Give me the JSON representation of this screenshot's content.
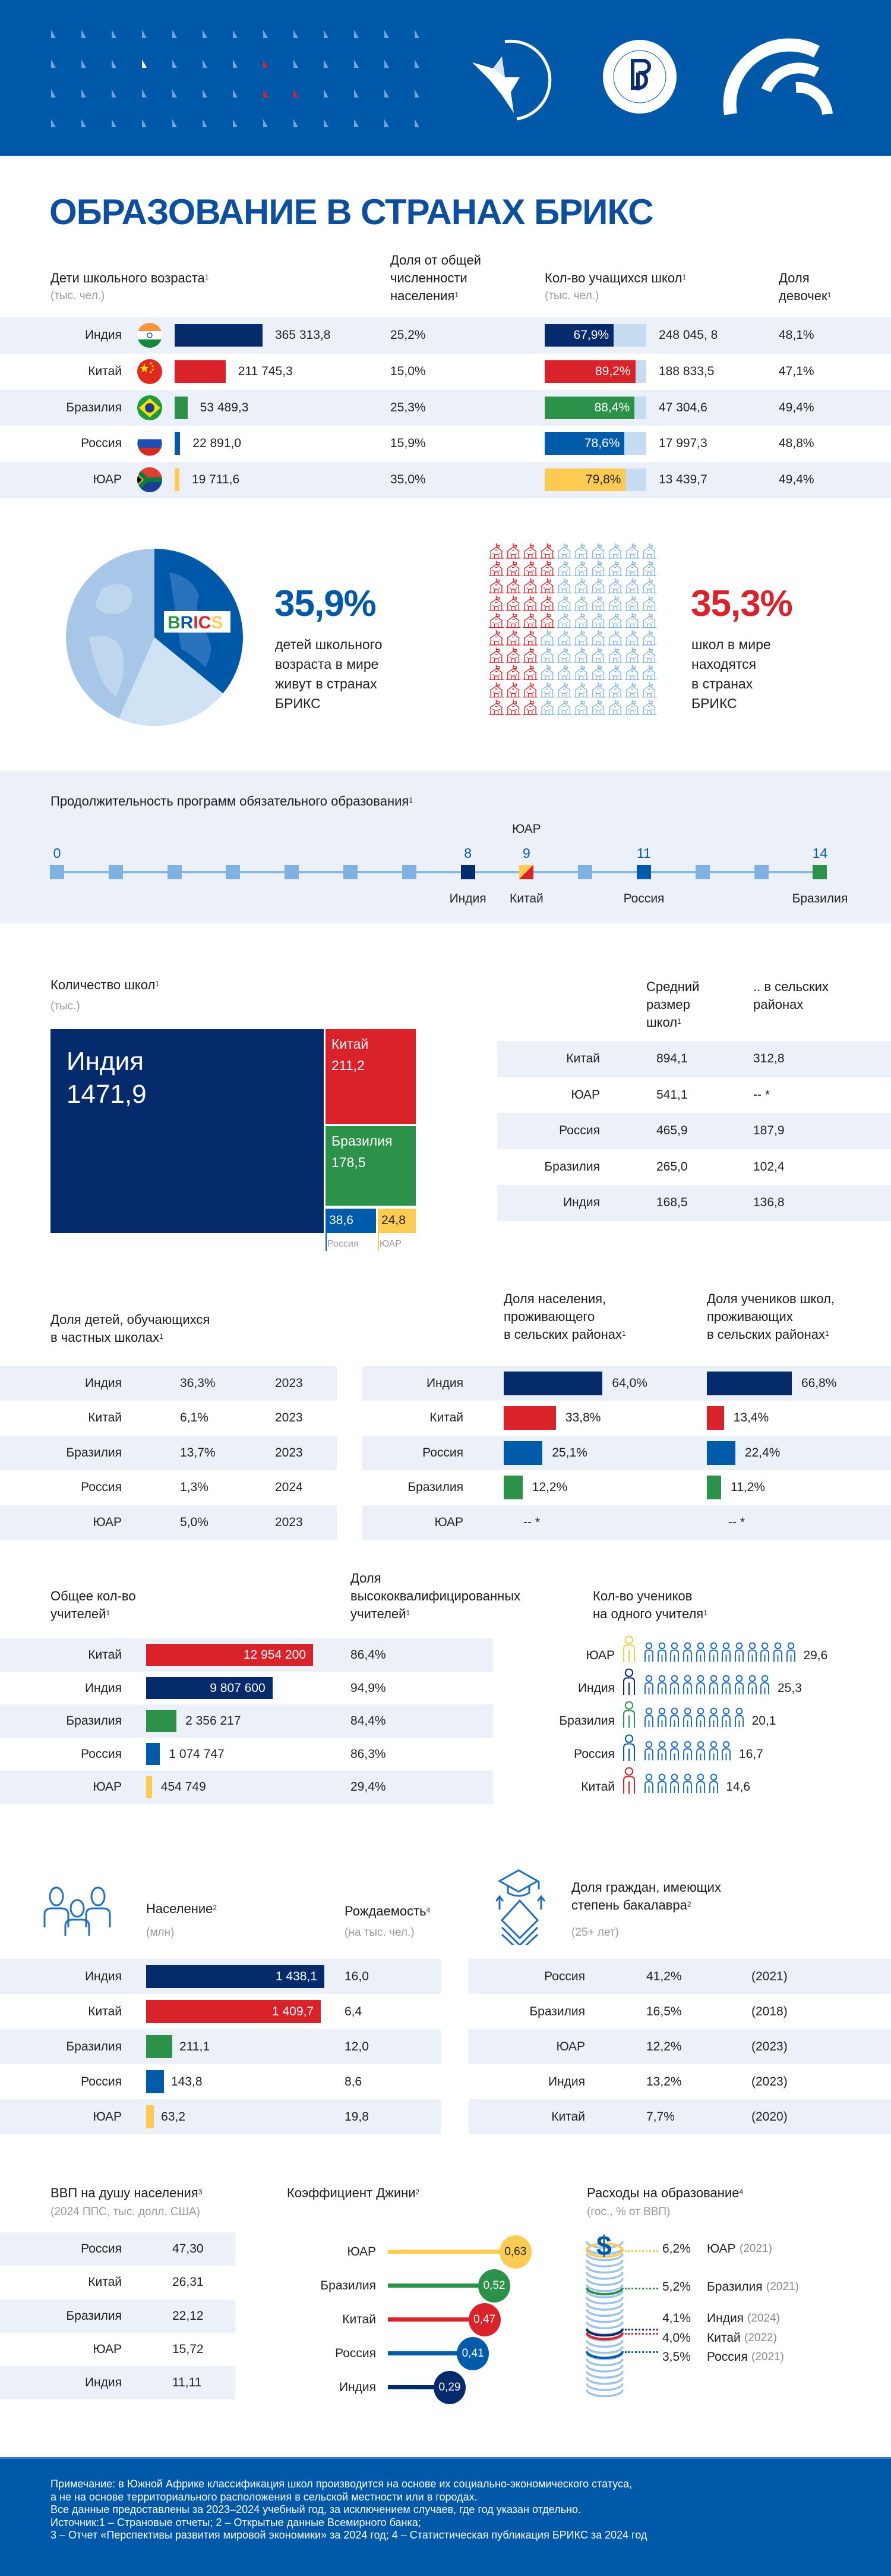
{
  "header": {
    "logos": [
      "ЭКСПЕРТНЫЙ СОВЕТ БРИКС — РОССИЯ",
      "ВЫСШАЯ ШКОЛА ЭКОНОМИКИ",
      "ИНСТИТУТ ОБРАЗОВАНИЯ НИУ ВШЭ"
    ]
  },
  "title": "ОБРАЗОВАНИЕ В СТРАНАХ БРИКС",
  "colors": {
    "india": "#062b6c",
    "china": "#d9222a",
    "brazil": "#2c9149",
    "russia": "#005baa",
    "south_africa": "#fdcb52",
    "header_bg": "#0058a8",
    "row_band": "#ecf1f9",
    "light_bar": "#c6dcf1",
    "title": "#0b4f9e",
    "accent_red": "#d9222a"
  },
  "children": {
    "header": {
      "children": [
        "Дети школьного возраста"
      ],
      "children_sup": "1",
      "children_unit": "(тыс. чел.)",
      "share": [
        "Доля от общей",
        "численности",
        "населения"
      ],
      "share_sup": "1",
      "students": [
        "Кол-во учащихся школ"
      ],
      "students_sup": "1",
      "students_unit": "(тыс. чел.)",
      "girls": [
        "Доля",
        "девочек"
      ],
      "girls_sup": "1"
    },
    "rows": [
      {
        "country": "Индия",
        "key": "india",
        "children": "365 313,8",
        "children_value": 365313.8,
        "share": "25,2%",
        "students_pct": "67,9%",
        "students_pct_value": 67.9,
        "students": "248 045, 8",
        "girls": "48,1%"
      },
      {
        "country": "Китай",
        "key": "china",
        "children": "211 745,3",
        "children_value": 211745.3,
        "share": "15,0%",
        "students_pct": "89,2%",
        "students_pct_value": 89.2,
        "students": "188 833,5",
        "girls": "47,1%"
      },
      {
        "country": "Бразилия",
        "key": "brazil",
        "children": "53 489,3",
        "children_value": 53489.3,
        "share": "25,3%",
        "students_pct": "88,4%",
        "students_pct_value": 88.4,
        "students": "47 304,6",
        "girls": "49,4%"
      },
      {
        "country": "Россия",
        "key": "russia",
        "children": "22 891,0",
        "children_value": 22891.0,
        "share": "15,9%",
        "students_pct": "78,6%",
        "students_pct_value": 78.6,
        "students": "17 997,3",
        "girls": "48,8%"
      },
      {
        "country": "ЮАР",
        "key": "south_africa",
        "children": "19 711,6",
        "children_value": 19711.6,
        "share": "35,0%",
        "students_pct": "79,8%",
        "students_pct_value": 79.8,
        "students": "13 439,7",
        "girls": "49,4%"
      }
    ]
  },
  "stats": {
    "globe_label": "BRICS",
    "children_pct": "35,9%",
    "children_value": 35.9,
    "children_text": [
      "детей школьного",
      "возраста в мире",
      "живут в странах",
      "БРИКС"
    ],
    "schools_pct": "35,3%",
    "schools_value": 35.3,
    "schools_text": [
      "школ в мире",
      "находятся",
      "в странах",
      "БРИКС"
    ]
  },
  "timeline": {
    "title": [
      "Продолжительность программ обязательного образования"
    ],
    "sup": "1",
    "ticks": [
      {
        "label": "0",
        "value": 0
      },
      {
        "label": "8",
        "value": 8
      },
      {
        "label": "9",
        "value": 9
      },
      {
        "label": "11",
        "value": 11
      },
      {
        "label": "14",
        "value": 14
      }
    ],
    "points": [
      {
        "country": "Индия",
        "key": "india",
        "years": 8,
        "side": "below"
      },
      {
        "country": "Китай",
        "key": "china",
        "years": 9,
        "side": "below"
      },
      {
        "country": "ЮАР",
        "key": "south_africa",
        "years": 9,
        "side": "above"
      },
      {
        "country": "Россия",
        "key": "russia",
        "years": 11,
        "side": "below"
      },
      {
        "country": "Бразилия",
        "key": "brazil",
        "years": 14,
        "side": "below"
      }
    ]
  },
  "schools": {
    "title": [
      "Количество школ"
    ],
    "sup": "1",
    "unit": "(тыс.)",
    "treemap": [
      {
        "country": "Индия",
        "key": "india",
        "value": "1471,9"
      },
      {
        "country": "Китай",
        "key": "china",
        "value": "211,2"
      },
      {
        "country": "Бразилия",
        "key": "brazil",
        "value": "178,5"
      },
      {
        "country": "Россия",
        "key": "russia",
        "value": "38,6"
      },
      {
        "country": "ЮАР",
        "key": "south_africa",
        "value": "24,8"
      }
    ],
    "avg_header": [
      "Средний",
      "размер",
      "школ"
    ],
    "avg_sup": "1",
    "rural_header": [
      ".. в сельских",
      "районах"
    ],
    "rows": [
      {
        "country": "Китай",
        "avg": "894,1",
        "rural": "312,8"
      },
      {
        "country": "ЮАР",
        "avg": "541,1",
        "rural": "-- *"
      },
      {
        "country": "Россия",
        "avg": "465,9",
        "rural": "187,9"
      },
      {
        "country": "Бразилия",
        "avg": "265,0",
        "rural": "102,4"
      },
      {
        "country": "Индия",
        "avg": "168,5",
        "rural": "136,8"
      }
    ]
  },
  "private": {
    "title": [
      "Доля детей, обучающихся",
      "в частных школах"
    ],
    "sup": "1",
    "rows": [
      {
        "country": "Индия",
        "pct": "36,3%",
        "year": "2023"
      },
      {
        "country": "Китай",
        "pct": "6,1%",
        "year": "2023"
      },
      {
        "country": "Бразилия",
        "pct": "13,7%",
        "year": "2023"
      },
      {
        "country": "Россия",
        "pct": "1,3%",
        "year": "2024"
      },
      {
        "country": "ЮАР",
        "pct": "5,0%",
        "year": "2023"
      }
    ]
  },
  "rural": {
    "pop_header": [
      "Доля населения,",
      "проживающего",
      "в сельских районах"
    ],
    "pop_sup": "1",
    "students_header": [
      "Доля учеников школ,",
      "проживающих",
      "в сельских районах"
    ],
    "students_sup": "1",
    "rows": [
      {
        "country": "Индия",
        "key": "india",
        "pop": "64,0%",
        "pop_value": 64.0,
        "students": "66,8%",
        "students_value": 66.8
      },
      {
        "country": "Китай",
        "key": "china",
        "pop": "33,8%",
        "pop_value": 33.8,
        "students": "13,4%",
        "students_value": 13.4
      },
      {
        "country": "Россия",
        "key": "russia",
        "pop": "25,1%",
        "pop_value": 25.1,
        "students": "22,4%",
        "students_value": 22.4
      },
      {
        "country": "Бразилия",
        "key": "brazil",
        "pop": "12,2%",
        "pop_value": 12.2,
        "students": "11,2%",
        "students_value": 11.2
      },
      {
        "country": "ЮАР",
        "key": "south_africa",
        "pop": "-- *",
        "pop_value": null,
        "students": "-- *",
        "students_value": null
      }
    ]
  },
  "teachers": {
    "total_header": [
      "Общее кол-во",
      "учителей"
    ],
    "total_sup": "1",
    "qual_header": [
      "Доля",
      "высококвалифицированных",
      "учителей"
    ],
    "qual_sup": "1",
    "ratio_header": [
      "Кол-во учеников",
      "на одного учителя"
    ],
    "ratio_sup": "1",
    "rows": [
      {
        "country": "Китай",
        "key": "china",
        "total": "12 954 200",
        "total_value": 12954200,
        "qual": "86,4%"
      },
      {
        "country": "Индия",
        "key": "india",
        "total": "9 807 600",
        "total_value": 9807600,
        "qual": "94,9%"
      },
      {
        "country": "Бразилия",
        "key": "brazil",
        "total": "2 356 217",
        "total_value": 2356217,
        "qual": "84,4%"
      },
      {
        "country": "Россия",
        "key": "russia",
        "total": "1 074 747",
        "total_value": 1074747,
        "qual": "86,3%"
      },
      {
        "country": "ЮАР",
        "key": "south_africa",
        "total": "454 749",
        "total_value": 454749,
        "qual": "29,4%"
      }
    ],
    "ratio_rows": [
      {
        "country": "ЮАР",
        "key": "south_africa",
        "ratio": "29,6",
        "ratio_value": 29.6
      },
      {
        "country": "Индия",
        "key": "india",
        "ratio": "25,3",
        "ratio_value": 25.3
      },
      {
        "country": "Бразилия",
        "key": "brazil",
        "ratio": "20,1",
        "ratio_value": 20.1
      },
      {
        "country": "Россия",
        "key": "russia",
        "ratio": "16,7",
        "ratio_value": 16.7
      },
      {
        "country": "Китай",
        "key": "china",
        "ratio": "14,6",
        "ratio_value": 14.6
      }
    ]
  },
  "population": {
    "pop_title": [
      "Население"
    ],
    "pop_sup": "2",
    "pop_unit": "(млн)",
    "birth_title": [
      "Рождаемость"
    ],
    "birth_sup": "4",
    "birth_unit": "(на тыс. чел.)",
    "rows": [
      {
        "country": "Индия",
        "key": "india",
        "pop": "1 438,1",
        "pop_value": 1438.1,
        "birth": "16,0"
      },
      {
        "country": "Китай",
        "key": "china",
        "pop": "1 409,7",
        "pop_value": 1409.7,
        "birth": "6,4"
      },
      {
        "country": "Бразилия",
        "key": "brazil",
        "pop": "211,1",
        "pop_value": 211.1,
        "birth": "12,0"
      },
      {
        "country": "Россия",
        "key": "russia",
        "pop": "143,8",
        "pop_value": 143.8,
        "birth": "8,6"
      },
      {
        "country": "ЮАР",
        "key": "south_africa",
        "pop": "63,2",
        "pop_value": 63.2,
        "birth": "19,8"
      }
    ]
  },
  "bachelor": {
    "title": [
      "Доля граждан, имеющих",
      "степень бакалавра"
    ],
    "sup": "2",
    "unit": "(25+ лет)",
    "rows": [
      {
        "country": "Россия",
        "pct": "41,2%",
        "year": "(2021)"
      },
      {
        "country": "Бразилия",
        "pct": "16,5%",
        "year": "(2018)"
      },
      {
        "country": "ЮАР",
        "pct": "12,2%",
        "year": "(2023)"
      },
      {
        "country": "Индия",
        "pct": "13,2%",
        "year": "(2023)"
      },
      {
        "country": "Китай",
        "pct": "7,7%",
        "year": "(2020)"
      }
    ]
  },
  "gdp": {
    "title": [
      "ВВП на душу населения"
    ],
    "sup": "3",
    "unit": "(2024 ППС, тыс. долл. США)",
    "rows": [
      {
        "country": "Россия",
        "value": "47,30"
      },
      {
        "country": "Китай",
        "value": "26,31"
      },
      {
        "country": "Бразилия",
        "value": "22,12"
      },
      {
        "country": "ЮАР",
        "value": "15,72"
      },
      {
        "country": "Индия",
        "value": "11,11"
      }
    ]
  },
  "gini": {
    "title": [
      "Коэффициент Джини"
    ],
    "sup": "2",
    "rows": [
      {
        "country": "ЮАР",
        "key": "south_africa",
        "value": "0,63",
        "num": 0.63
      },
      {
        "country": "Бразилия",
        "key": "brazil",
        "value": "0,52",
        "num": 0.52
      },
      {
        "country": "Китай",
        "key": "china",
        "value": "0,47",
        "num": 0.47
      },
      {
        "country": "Россия",
        "key": "russia",
        "value": "0,41",
        "num": 0.41
      },
      {
        "country": "Индия",
        "key": "india",
        "value": "0,29",
        "num": 0.29
      }
    ]
  },
  "spending": {
    "title": [
      "Расходы на образование"
    ],
    "sup": "4",
    "unit": "(гос., % от ВВП)",
    "rows": [
      {
        "pct": "6,2%",
        "country": "ЮАР",
        "year": "(2021)",
        "key": "south_africa",
        "value": 6.2
      },
      {
        "pct": "5,2%",
        "country": "Бразилия",
        "year": "(2021)",
        "key": "brazil",
        "value": 5.2
      },
      {
        "pct": "4,1%",
        "country": "Индия",
        "year": "(2024)",
        "key": "india",
        "value": 4.1
      },
      {
        "pct": "4,0%",
        "country": "Китай",
        "year": "(2022)",
        "key": "china",
        "value": 4.0
      },
      {
        "pct": "3,5%",
        "country": "Россия",
        "year": "(2021)",
        "key": "russia",
        "value": 3.5
      }
    ]
  },
  "footer": {
    "lines": [
      "Примечание: в Южной Африке классификация школ производится на основе их социально-экономического статуса,",
      "а не на основе территориального расположения в сельской местности или в городах.",
      "Все данные предоставлены за 2023–2024 учебный год, за исключением случаев, где год указан отдельно.",
      "Источник:1 – Страновые отчеты; 2 – Открытые данные Всемирного банка;",
      "3 – Отчет «Перспективы развития мировой экономики» за 2024 год; 4 – Статистическая публикация БРИКС за 2024 год"
    ]
  }
}
